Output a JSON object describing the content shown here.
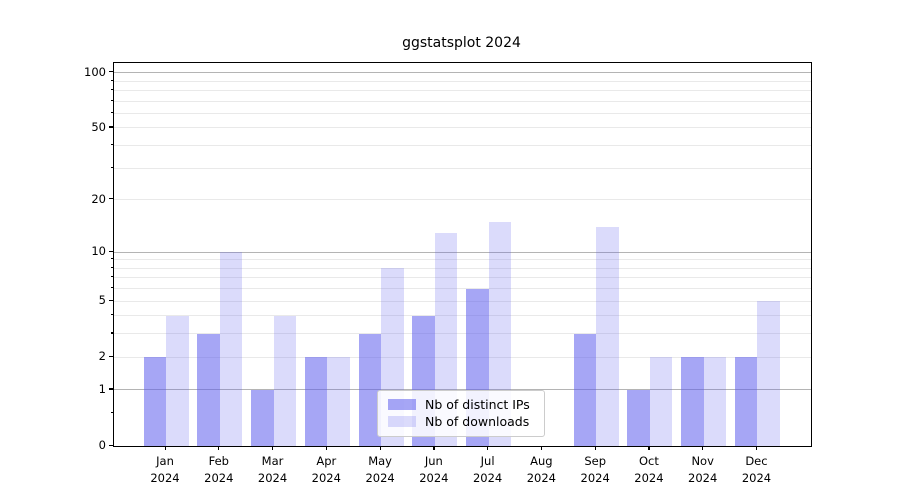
{
  "chart_data": {
    "type": "bar",
    "title": "ggstatsplot 2024",
    "scale": "pseudo-log (log1p)",
    "grid": true,
    "legend_position": "inside-bottom-center",
    "categories": [
      {
        "month": "Jan",
        "year": "2024"
      },
      {
        "month": "Feb",
        "year": "2024"
      },
      {
        "month": "Mar",
        "year": "2024"
      },
      {
        "month": "Apr",
        "year": "2024"
      },
      {
        "month": "May",
        "year": "2024"
      },
      {
        "month": "Jun",
        "year": "2024"
      },
      {
        "month": "Jul",
        "year": "2024"
      },
      {
        "month": "Aug",
        "year": "2024"
      },
      {
        "month": "Sep",
        "year": "2024"
      },
      {
        "month": "Oct",
        "year": "2024"
      },
      {
        "month": "Nov",
        "year": "2024"
      },
      {
        "month": "Dec",
        "year": "2024"
      }
    ],
    "series": [
      {
        "name": "Nb of distinct IPs",
        "values": [
          2,
          3,
          1,
          2,
          3,
          4,
          6,
          0,
          3,
          1,
          2,
          2
        ],
        "color": "rgba(92,92,237,0.55)"
      },
      {
        "name": "Nb of downloads",
        "values": [
          4,
          10,
          4,
          2,
          8,
          13,
          15,
          0,
          14,
          2,
          2,
          5
        ],
        "color": "rgba(92,92,237,0.22)"
      }
    ],
    "y_axis": {
      "tick_values": [
        0,
        1,
        2,
        5,
        10,
        20,
        50,
        100
      ],
      "major_gridlines": [
        1,
        10,
        100
      ],
      "minor_gridlines": [
        2,
        3,
        4,
        5,
        6,
        7,
        8,
        9,
        20,
        30,
        40,
        50,
        60,
        70,
        80,
        90
      ],
      "minor_axis_ticks": [
        0.5,
        2,
        3,
        4,
        5,
        6,
        7,
        8,
        9,
        20,
        30,
        40,
        50,
        60,
        70,
        80,
        90
      ],
      "ylim": [
        0,
        113
      ]
    },
    "colors": {
      "bar_base": "#5c5ced",
      "major_grid": "#b4b4b4",
      "minor_grid": "#e9e9e9",
      "spine": "#000000",
      "background": "#ffffff"
    }
  }
}
